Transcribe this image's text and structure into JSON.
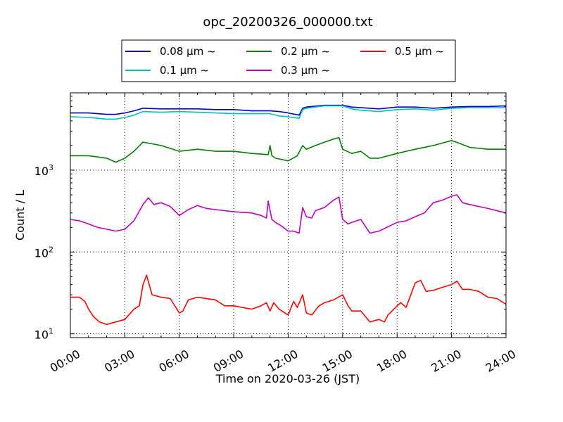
{
  "chart_data": {
    "type": "line",
    "title": "opc_20200326_000000.txt",
    "xlabel": "Time on 2020-03-26 (JST)",
    "ylabel": "Count / L",
    "x_unit": "hours",
    "xlim": [
      0,
      24
    ],
    "ylim": [
      9,
      8800
    ],
    "yscale": "log",
    "grid": true,
    "legend_position": "top-center",
    "x_ticks": [
      {
        "value": 0,
        "label": "00:00"
      },
      {
        "value": 3,
        "label": "03:00"
      },
      {
        "value": 6,
        "label": "06:00"
      },
      {
        "value": 9,
        "label": "09:00"
      },
      {
        "value": 12,
        "label": "12:00"
      },
      {
        "value": 15,
        "label": "15:00"
      },
      {
        "value": 18,
        "label": "18:00"
      },
      {
        "value": 21,
        "label": "21:00"
      },
      {
        "value": 24,
        "label": "24:00"
      }
    ],
    "y_ticks": [
      {
        "value": 10,
        "base": "10",
        "exp": "1"
      },
      {
        "value": 100,
        "base": "10",
        "exp": "2"
      },
      {
        "value": 1000,
        "base": "10",
        "exp": "3"
      }
    ],
    "series": [
      {
        "name": "0.08 μm ~",
        "color": "#0000cc",
        "x": [
          0,
          1,
          2,
          2.5,
          3,
          3.5,
          4,
          5,
          6,
          7,
          8,
          9,
          10,
          11,
          11.5,
          12,
          12.6,
          12.8,
          13,
          14,
          15,
          15.5,
          16,
          17,
          18,
          19,
          20,
          21,
          22,
          23,
          24
        ],
        "y": [
          5000,
          5000,
          4800,
          4800,
          5000,
          5300,
          5700,
          5600,
          5600,
          5600,
          5500,
          5500,
          5300,
          5300,
          5200,
          5000,
          4700,
          5700,
          5900,
          6200,
          6200,
          5900,
          5800,
          5600,
          5900,
          5900,
          5700,
          5900,
          6000,
          6000,
          6100
        ]
      },
      {
        "name": "0.1 μm ~",
        "color": "#00bfbf",
        "x": [
          0,
          1,
          2,
          2.5,
          3,
          3.5,
          4,
          5,
          6,
          7,
          8,
          9,
          10,
          11,
          11.5,
          12,
          12.6,
          12.8,
          13,
          14,
          15,
          15.5,
          16,
          17,
          18,
          19,
          20,
          21,
          22,
          23,
          24
        ],
        "y": [
          4500,
          4400,
          4200,
          4200,
          4400,
          4700,
          5200,
          5100,
          5200,
          5100,
          5000,
          4900,
          4900,
          4900,
          4600,
          4500,
          4300,
          5500,
          5700,
          6100,
          6100,
          5600,
          5400,
          5200,
          5500,
          5600,
          5400,
          5700,
          5800,
          5800,
          5800
        ]
      },
      {
        "name": "0.2 μm ~",
        "color": "#007f00",
        "x": [
          0,
          1,
          2,
          2.5,
          3,
          3.5,
          4,
          5,
          6,
          7,
          8,
          9,
          10,
          10.9,
          11,
          11.1,
          11.3,
          12,
          12.5,
          12.8,
          13,
          13.5,
          14,
          14.5,
          14.8,
          15,
          15.5,
          16,
          16.5,
          17,
          18,
          18.5,
          19,
          20,
          21,
          21.5,
          22,
          23,
          24
        ],
        "y": [
          1500,
          1500,
          1400,
          1250,
          1400,
          1700,
          2200,
          2000,
          1700,
          1800,
          1700,
          1700,
          1600,
          1550,
          2000,
          1500,
          1400,
          1300,
          1500,
          2000,
          1800,
          2000,
          2200,
          2400,
          2500,
          1800,
          1600,
          1700,
          1400,
          1400,
          1600,
          1700,
          1800,
          2000,
          2300,
          2100,
          1900,
          1800,
          1800
        ]
      },
      {
        "name": "0.3 μm ~",
        "color": "#bf00bf",
        "x": [
          0,
          0.5,
          1,
          1.5,
          2,
          2.5,
          3,
          3.5,
          4,
          4.3,
          4.6,
          5,
          5.5,
          6,
          6.5,
          7,
          7.5,
          8,
          9,
          10,
          10.5,
          10.8,
          10.9,
          11.1,
          11.3,
          11.6,
          12,
          12.3,
          12.6,
          12.8,
          13,
          13.3,
          13.5,
          14,
          14.5,
          14.8,
          15,
          15.3,
          15.5,
          16,
          16.5,
          17,
          18,
          18.5,
          19,
          19.5,
          20,
          20.5,
          21,
          21.3,
          21.6,
          22,
          23,
          24
        ],
        "y": [
          250,
          240,
          220,
          200,
          190,
          180,
          190,
          240,
          380,
          460,
          380,
          400,
          360,
          280,
          330,
          370,
          340,
          330,
          310,
          300,
          280,
          260,
          420,
          250,
          230,
          210,
          180,
          180,
          170,
          350,
          270,
          260,
          320,
          350,
          430,
          470,
          250,
          220,
          230,
          250,
          170,
          180,
          230,
          240,
          270,
          300,
          400,
          430,
          480,
          500,
          400,
          380,
          340,
          300
        ]
      },
      {
        "name": "0.5 μm ~",
        "color": "#ff0000",
        "x": [
          0,
          0.5,
          0.8,
          1,
          1.3,
          1.6,
          2,
          2.5,
          3,
          3.5,
          3.8,
          4,
          4.2,
          4.5,
          5,
          5.5,
          6,
          6.2,
          6.5,
          7,
          8,
          8.5,
          9,
          10,
          10.5,
          10.8,
          11,
          11.2,
          11.5,
          12,
          12.3,
          12.5,
          12.8,
          13,
          13.3,
          13.7,
          14,
          14.5,
          15,
          15.3,
          15.5,
          16,
          16.5,
          17,
          17.3,
          17.5,
          18,
          18.2,
          18.5,
          18.8,
          19,
          19.3,
          19.6,
          20,
          20.5,
          21,
          21.3,
          21.6,
          22,
          22.5,
          23,
          23.5,
          24
        ],
        "y": [
          28,
          28,
          25,
          20,
          16,
          14,
          13,
          14,
          15,
          20,
          22,
          40,
          52,
          30,
          28,
          27,
          18,
          19,
          26,
          28,
          26,
          22,
          22,
          20,
          22,
          24,
          19,
          24,
          20,
          17,
          25,
          21,
          30,
          18,
          17,
          22,
          24,
          26,
          30,
          22,
          19,
          19,
          14,
          15,
          14,
          17,
          22,
          24,
          21,
          32,
          42,
          45,
          33,
          34,
          37,
          40,
          44,
          35,
          35,
          33,
          28,
          27,
          23
        ]
      }
    ]
  }
}
